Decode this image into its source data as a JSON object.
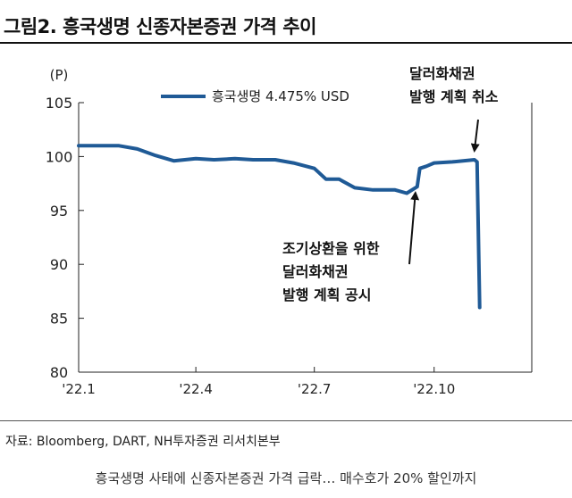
{
  "title": "그림2. 흥국생명 신종자본증권 가격 추이",
  "source": "자료: Bloomberg, DART, NH투자증권 리서치본부",
  "caption": "흥국생명 사태에 신종자본증권 가격 급락… 매수호가 20% 할인까지",
  "chart_data": {
    "type": "line",
    "unit_label": "(P)",
    "ylim": [
      80,
      105
    ],
    "yticks": [
      80,
      85,
      90,
      95,
      100,
      105
    ],
    "xlim": [
      "2022-01-01",
      "2022-12-15"
    ],
    "xticks": [
      {
        "date": "2022-01-01",
        "label": "'22.1"
      },
      {
        "date": "2022-04-01",
        "label": "'22.4"
      },
      {
        "date": "2022-07-01",
        "label": "'22.7"
      },
      {
        "date": "2022-10-01",
        "label": "'22.10"
      }
    ],
    "grid": false,
    "legend_position": "top-left",
    "color": "#1f5a96",
    "series": [
      {
        "name": "흥국생명 4.475% USD",
        "x": [
          "2022-01-01",
          "2022-01-15",
          "2022-02-01",
          "2022-02-15",
          "2022-03-01",
          "2022-03-15",
          "2022-04-01",
          "2022-04-15",
          "2022-05-01",
          "2022-05-15",
          "2022-06-01",
          "2022-06-15",
          "2022-07-01",
          "2022-07-10",
          "2022-07-20",
          "2022-08-01",
          "2022-08-15",
          "2022-09-01",
          "2022-09-10",
          "2022-09-18",
          "2022-09-20",
          "2022-09-25",
          "2022-10-01",
          "2022-10-15",
          "2022-11-01",
          "2022-11-03",
          "2022-11-05"
        ],
        "y": [
          101.0,
          101.0,
          101.0,
          100.7,
          100.1,
          99.6,
          99.8,
          99.7,
          99.8,
          99.7,
          99.7,
          99.4,
          98.9,
          97.9,
          97.9,
          97.1,
          96.9,
          96.9,
          96.6,
          97.2,
          98.9,
          99.1,
          99.4,
          99.5,
          99.7,
          99.5,
          86.0
        ]
      }
    ],
    "annotations": [
      {
        "label_lines": [
          "조기상환을 위한",
          "달러화채권",
          "발행 계획 공시"
        ],
        "date": "2022-09-18",
        "value": 97.3
      },
      {
        "label_lines": [
          "달러화채권",
          "발행 계획 취소"
        ],
        "date": "2022-11-03",
        "value": 99.7
      }
    ]
  }
}
